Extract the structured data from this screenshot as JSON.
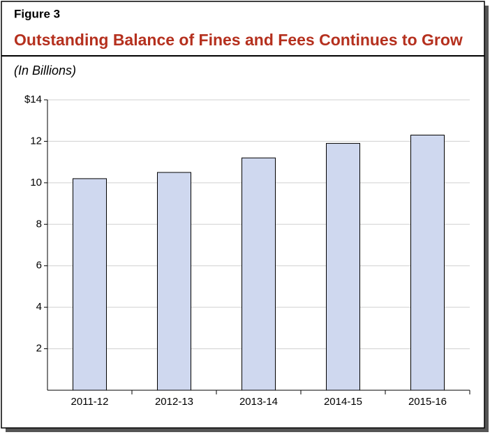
{
  "chart_data": {
    "type": "bar",
    "figure_label": "Figure 3",
    "title": "Outstanding Balance of Fines and Fees Continues to Grow",
    "subtitle": "(In Billions)",
    "categories": [
      "2011-12",
      "2012-13",
      "2013-14",
      "2014-15",
      "2015-16"
    ],
    "values": [
      10.2,
      10.5,
      11.2,
      11.9,
      12.3
    ],
    "color": "#cfd8ef",
    "ylim": [
      0,
      14
    ],
    "yticks": [
      2,
      4,
      6,
      8,
      10,
      12,
      {
        "value": 14,
        "label": "$14"
      }
    ],
    "grid": true
  }
}
